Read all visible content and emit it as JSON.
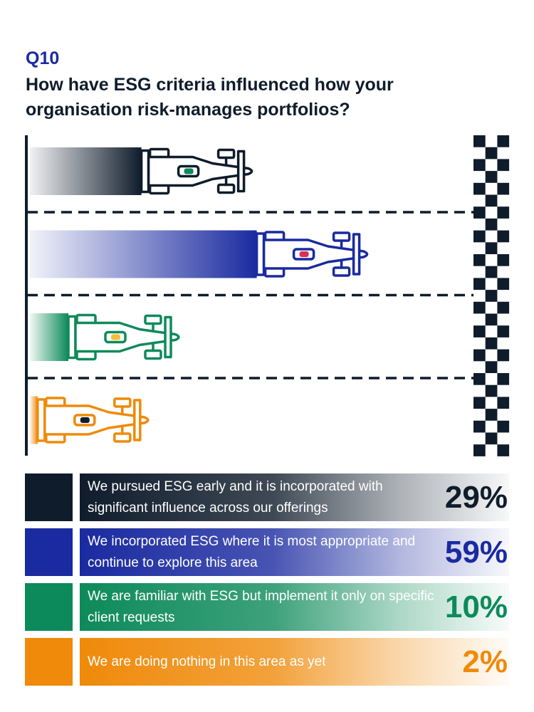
{
  "header": {
    "question_number": "Q10",
    "title": "How have ESG criteria influenced how your organisation risk-manages portfolios?"
  },
  "chart_data": {
    "type": "bar",
    "categories": [
      "We pursued ESG early and it is incorporated with significant influence across our offerings",
      "We incorporated ESG where it is most appropriate and continue to explore this area",
      "We are familiar with ESG but implement it only on specific client requests",
      "We are doing nothing in this area as yet"
    ],
    "values": [
      29,
      59,
      10,
      2
    ],
    "value_labels": [
      "29%",
      "59%",
      "10%",
      "2%"
    ],
    "unit": "%",
    "colors": [
      "#0f1c2b",
      "#1a2aa0",
      "#0d8a5b",
      "#ef8a0a"
    ],
    "car_accent_colors": [
      "#0d8a5b",
      "#d9305a",
      "#f2c037",
      "#0f1c2b"
    ],
    "ylim": [
      0,
      100
    ],
    "legend_position": "bottom",
    "style": "race cars on a track with checkered finish line"
  },
  "icons": {
    "car": "race-car-icon",
    "finish": "checkered-flag-icon"
  }
}
